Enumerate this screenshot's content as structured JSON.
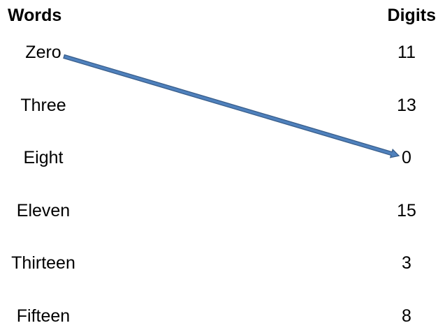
{
  "headers": {
    "words": "Words",
    "digits": "Digits"
  },
  "words": [
    "Zero",
    "Three",
    "Eight",
    "Eleven",
    "Thirteen",
    "Fifteen"
  ],
  "digits": [
    "11",
    "13",
    "0",
    "15",
    "3",
    "8"
  ],
  "connections": [
    {
      "from_word_index": 0,
      "to_digit_index": 2
    }
  ],
  "colors": {
    "arrow_fill": "#4f81bd",
    "arrow_stroke": "#385d8a",
    "text": "#000000"
  }
}
